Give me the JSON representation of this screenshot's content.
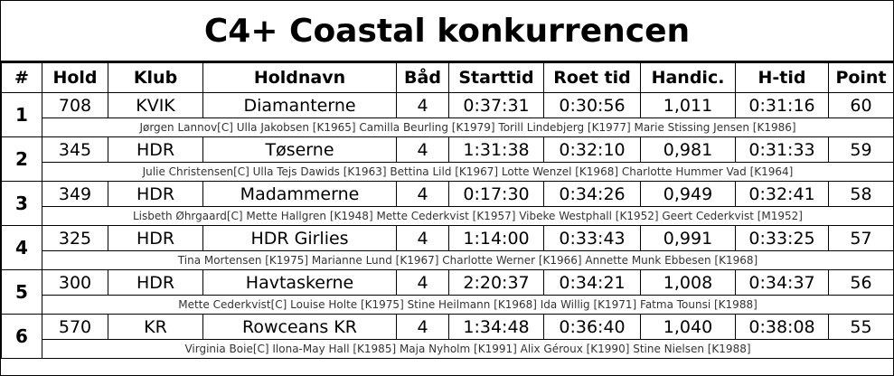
{
  "title": "C4+ Coastal konkurrencen",
  "table": {
    "headers": [
      "#",
      "Hold",
      "Klub",
      "Holdnavn",
      "Båd",
      "Starttid",
      "Roet tid",
      "Handic.",
      "H-tid",
      "Point"
    ],
    "rows": [
      {
        "rank": "1",
        "cells": [
          "708",
          "KVIK",
          "Diamanterne",
          "4",
          "0:37:31",
          "0:30:56",
          "1,011",
          "0:31:16",
          "60"
        ],
        "crew": "Jørgen Lannov[C] Ulla Jakobsen [K1965] Camilla Beurling [K1979] Torill Lindebjerg [K1977] Marie Stissing Jensen [K1986]"
      },
      {
        "rank": "2",
        "cells": [
          "345",
          "HDR",
          "Tøserne",
          "4",
          "1:31:38",
          "0:32:10",
          "0,981",
          "0:31:33",
          "59"
        ],
        "crew": "Julie Christensen[C] Ulla Tejs Dawids [K1963] Bettina Lild [K1967] Lotte Wenzel [K1968] Charlotte Hummer Vad [K1964]"
      },
      {
        "rank": "3",
        "cells": [
          "349",
          "HDR",
          "Madammerne",
          "4",
          "0:17:30",
          "0:34:26",
          "0,949",
          "0:32:41",
          "58"
        ],
        "crew": "Lisbeth Øhrgaard[C] Mette Hallgren [K1948] Mette Cederkvist [K1957] Vibeke Westphall [K1952] Geert Cederkvist [M1952]"
      },
      {
        "rank": "4",
        "cells": [
          "325",
          "HDR",
          "HDR Girlies",
          "4",
          "1:14:00",
          "0:33:43",
          "0,991",
          "0:33:25",
          "57"
        ],
        "crew": "Tina Mortensen [K1975] Marianne Lund [K1967] Charlotte Werner [K1966] Annette Munk Ebbesen [K1968]"
      },
      {
        "rank": "5",
        "cells": [
          "300",
          "HDR",
          "Havtaskerne",
          "4",
          "2:20:37",
          "0:34:21",
          "1,008",
          "0:34:37",
          "56"
        ],
        "crew": "Mette Cederkvist[C] Louise Holte [K1975] Stine Heilmann [K1968] Ida Willig [K1971] Fatma Tounsi [K1988]"
      },
      {
        "rank": "6",
        "cells": [
          "570",
          "KR",
          "Rowceans KR",
          "4",
          "1:34:48",
          "0:36:40",
          "1,040",
          "0:38:08",
          "55"
        ],
        "crew": "Virginia Boie[C] Ilona-May Hall [K1985] Maja Nyholm [K1991] Alix Géroux [K1990] Stine Nielsen [K1988]"
      }
    ]
  }
}
